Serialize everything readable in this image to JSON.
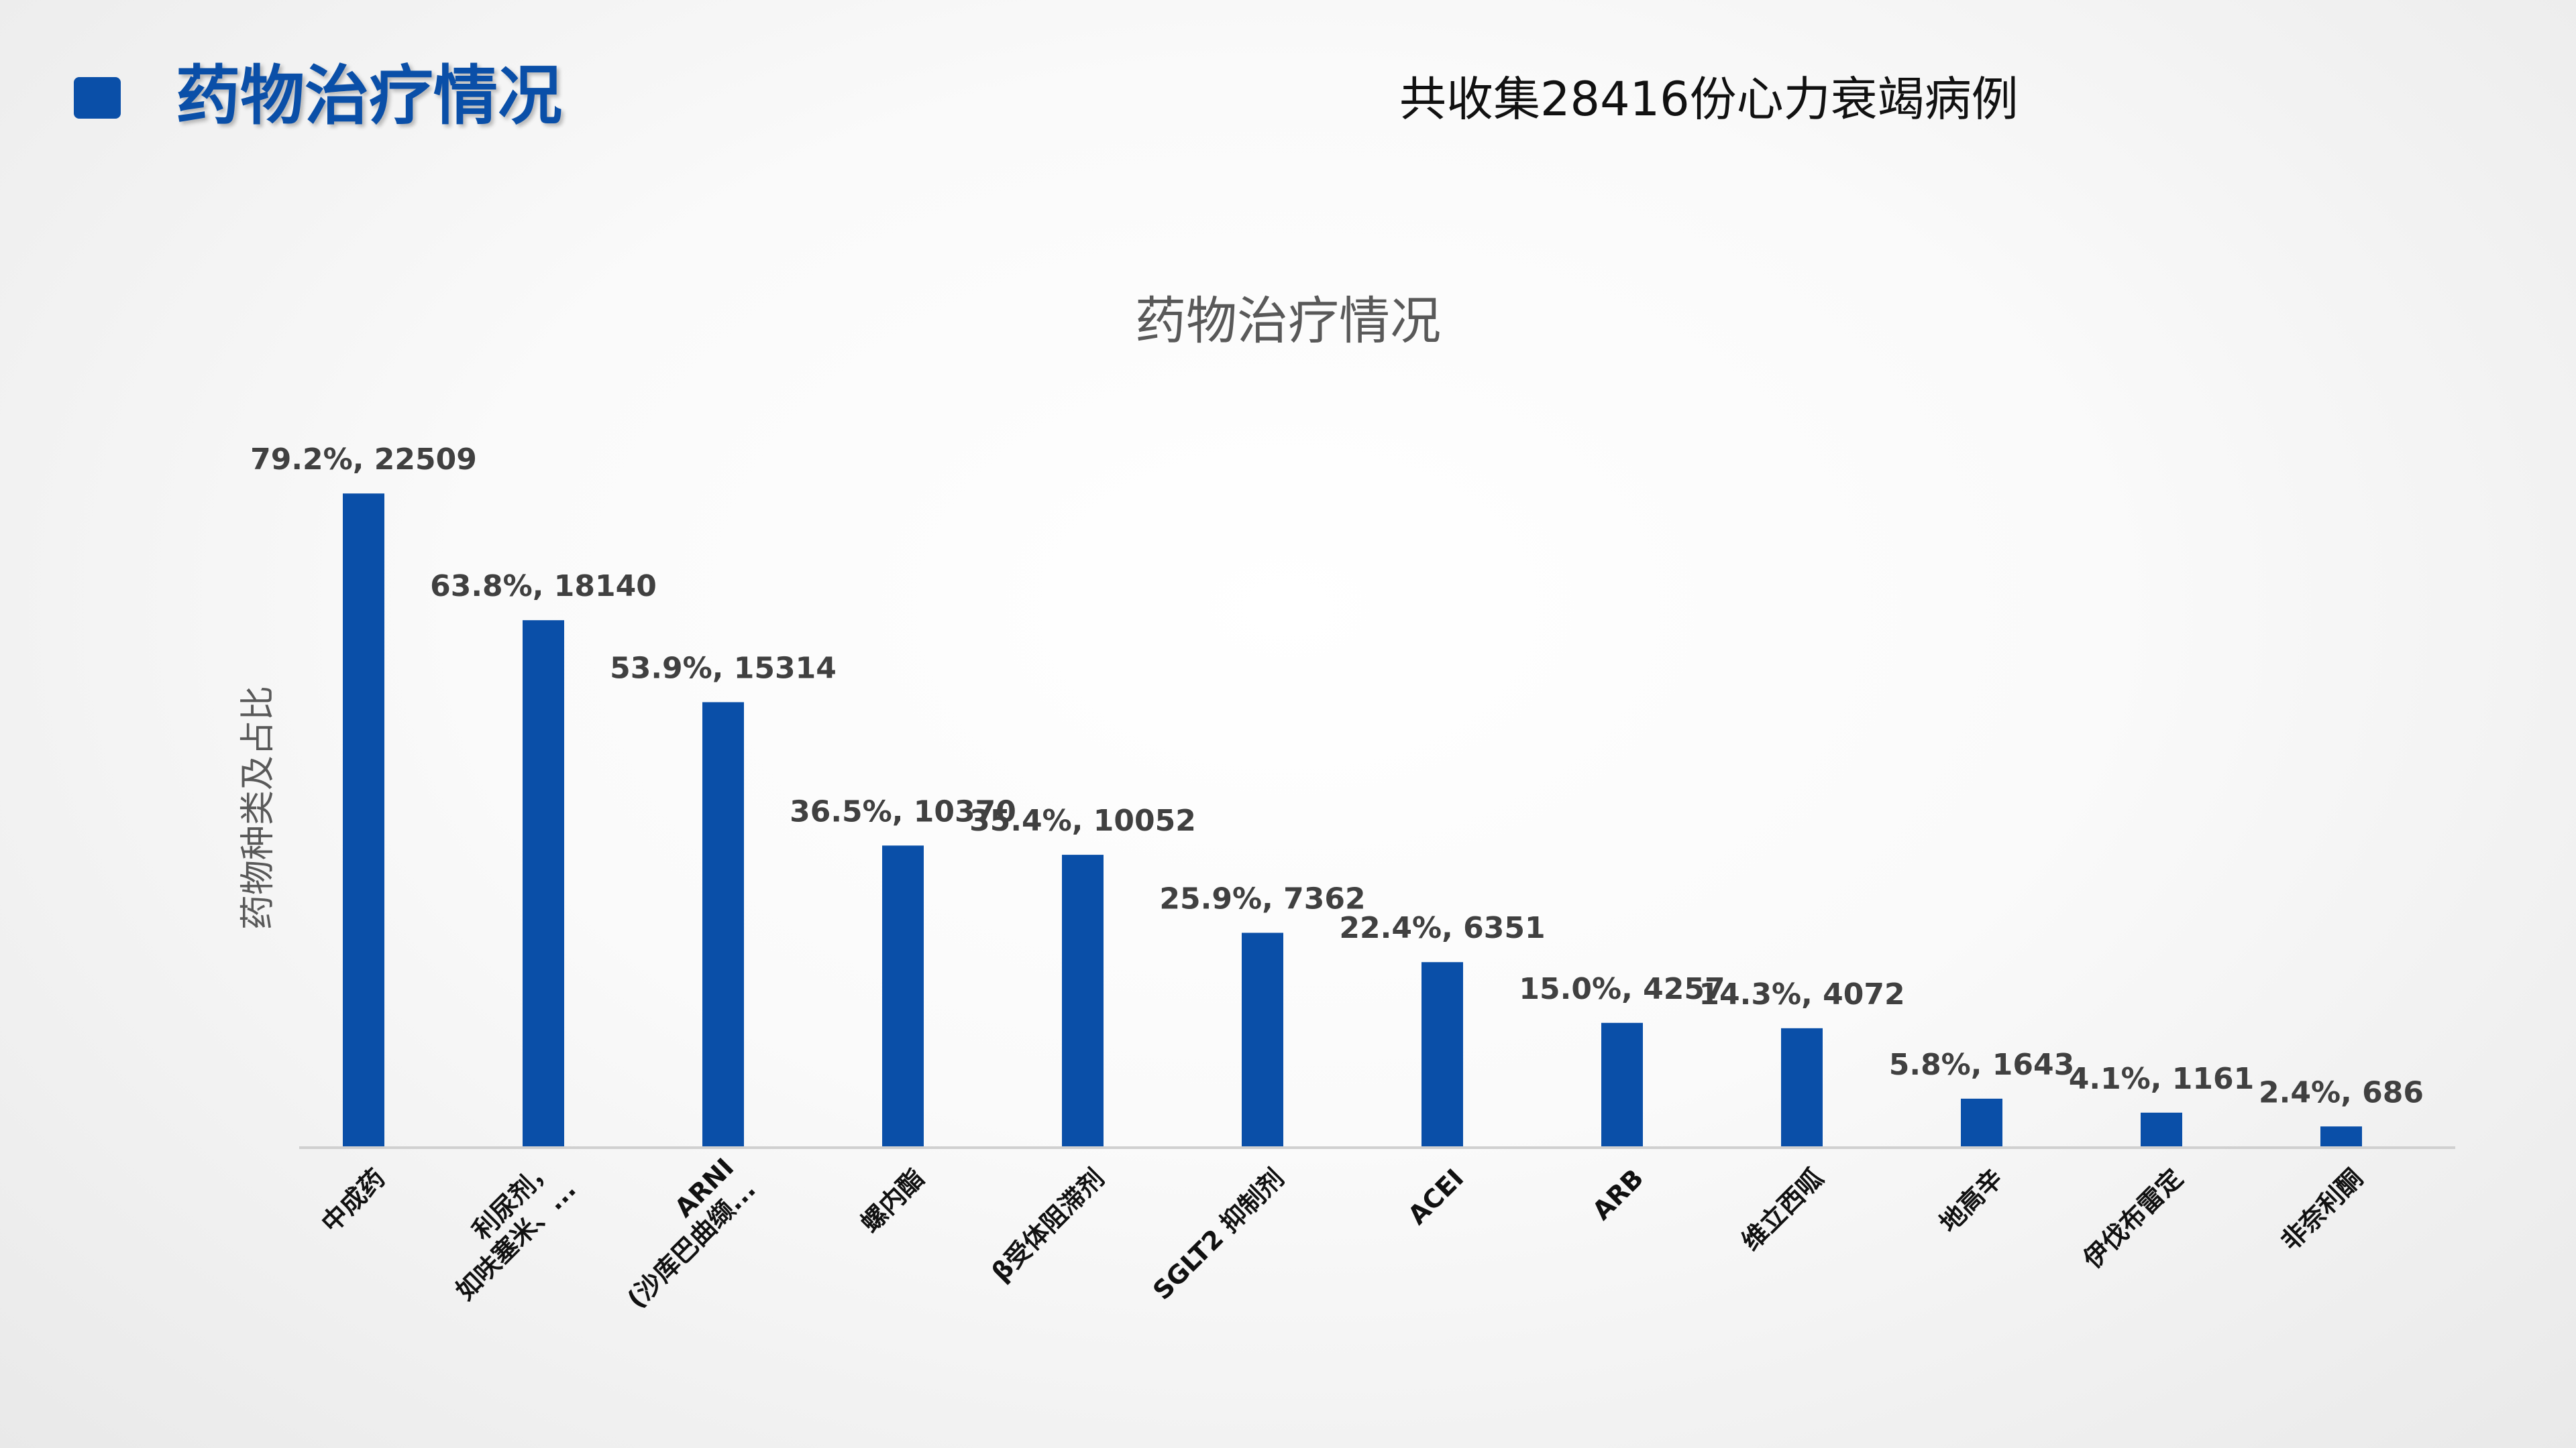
{
  "header": {
    "title": "药物治疗情况",
    "subtitle": "共收集28416份心力衰竭病例"
  },
  "colors": {
    "accent": "#0a4fa8",
    "bar": "#0a4fa8",
    "axis_line": "#d0d0d0",
    "chart_title": "#595959",
    "label_text": "#404040",
    "category_text": "#111111"
  },
  "chart_data": {
    "type": "bar",
    "title": "药物治疗情况",
    "xlabel": "",
    "ylabel": "药物种类及占比",
    "grid": false,
    "legend": "none",
    "ylim": [
      0,
      24500
    ],
    "categories": [
      "中成药",
      "利尿剂，\n如呋塞米、...",
      "ARNI\n(沙库巴曲缬...",
      "螺内酯",
      "β受体阻滞剂",
      "SGLT2 抑制剂",
      "ACEI",
      "ARB",
      "维立西呱",
      "地高辛",
      "伊伐布雷定",
      "非奈利酮"
    ],
    "values": [
      22509,
      18140,
      15314,
      10370,
      10052,
      7362,
      6351,
      4257,
      4072,
      1643,
      1161,
      686
    ],
    "data_labels": [
      "79.2%, 22509",
      "63.8%, 18140",
      "53.9%, 15314",
      "36.5%, 10370",
      "35.4%, 10052",
      "25.9%, 7362",
      "22.4%, 6351",
      "15.0%, 4257",
      "14.3%, 4072",
      "5.8%, 1643",
      "4.1%, 1161",
      "2.4%, 686"
    ]
  }
}
